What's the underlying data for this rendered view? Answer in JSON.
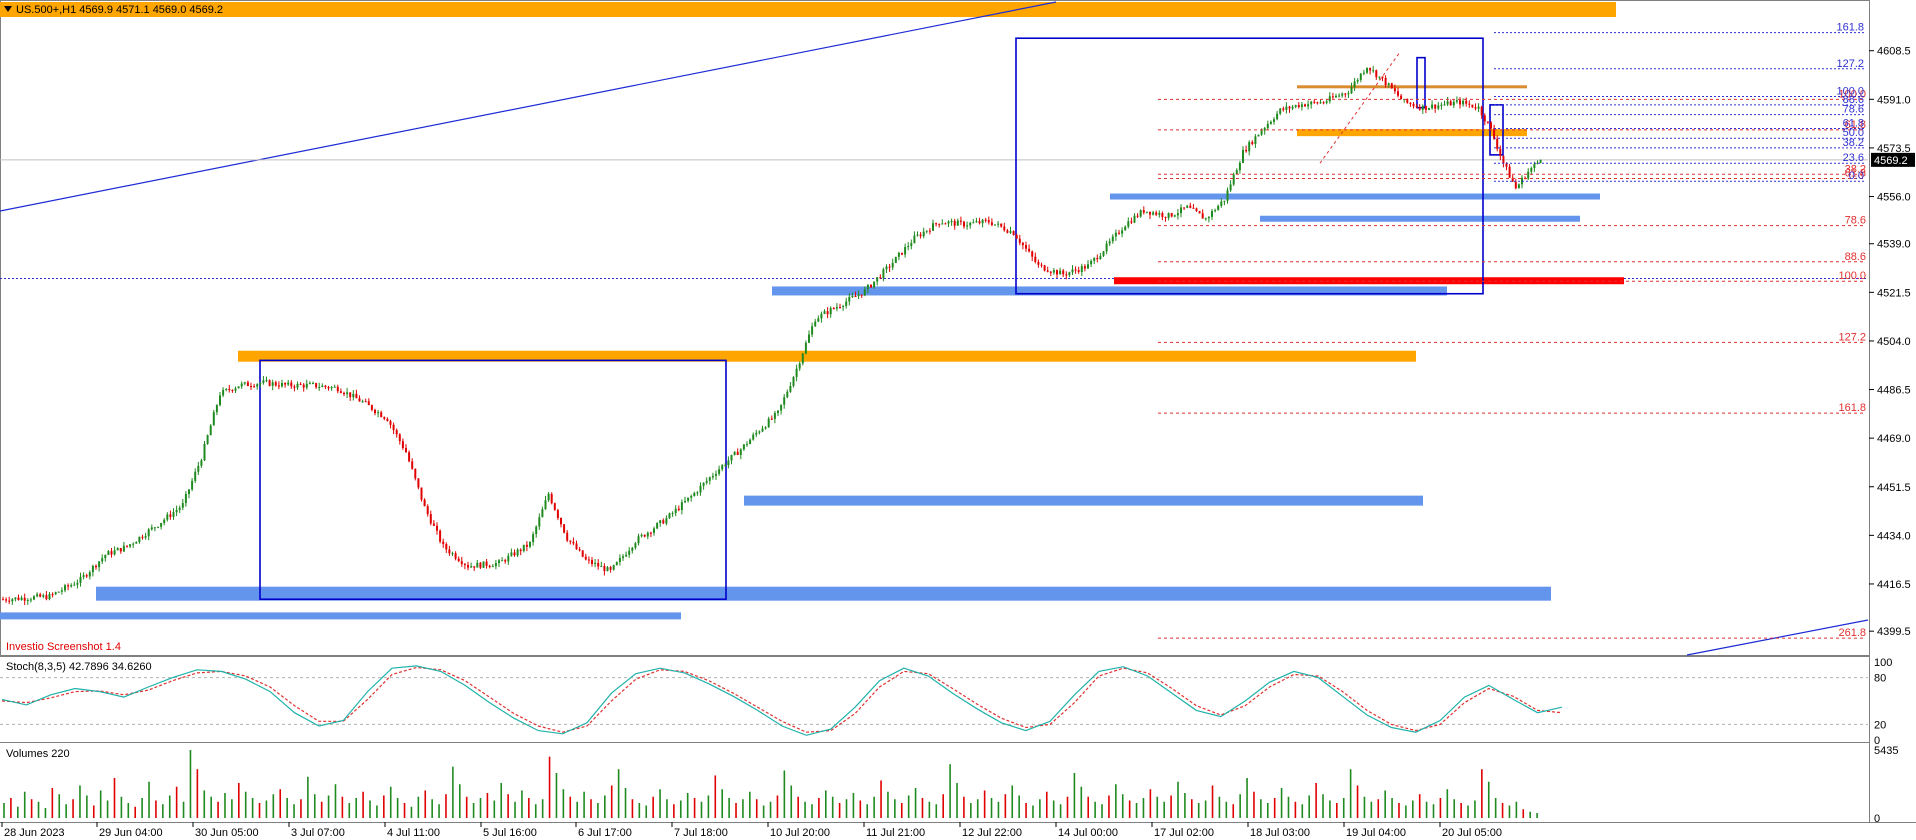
{
  "header": {
    "symbol_line": "US.500+,H1  4569.9 4571.1 4569.0 4569.2",
    "watermark": "Investio Screenshot 1.4",
    "menu_icon": "triangle-down-icon"
  },
  "colors": {
    "bull": "#1f8a1f",
    "bear": "#e00000",
    "orange": "#ffa500",
    "zone_blue": "#6495ed",
    "box_blue": "#0000cd",
    "fib_red": "#e03030",
    "fib_blue": "#3030d0",
    "red_zone": "#ff0000",
    "stoch_main": "#20b2aa",
    "stoch_signal": "#e03030"
  },
  "chart_data": {
    "type": "candlestick",
    "symbol": "US.500+",
    "timeframe": "H1",
    "ohlc_last": {
      "open": 4569.9,
      "high": 4571.1,
      "low": 4569.0,
      "close": 4569.2
    },
    "last_price_label": "4569.2",
    "y_ticks": [
      "4608.5",
      "4591.0",
      "4573.5",
      "4556.0",
      "4539.0",
      "4521.5",
      "4504.0",
      "4486.5",
      "4469.0",
      "4451.5",
      "4434.0",
      "4416.5",
      "4399.5"
    ],
    "y_range": [
      4392,
      4621
    ],
    "x_ticks": [
      "28 Jun 2023",
      "29 Jun 04:00",
      "30 Jun 05:00",
      "3 Jul 07:00",
      "4 Jul 11:00",
      "5 Jul 16:00",
      "6 Jul 17:00",
      "7 Jul 18:00",
      "10 Jul 20:00",
      "11 Jul 21:00",
      "12 Jul 22:00",
      "14 Jul 00:00",
      "17 Jul 02:00",
      "18 Jul 03:00",
      "19 Jul 04:00",
      "20 Jul 05:00"
    ],
    "price_path": [
      [
        0,
        4411
      ],
      [
        15,
        4412
      ],
      [
        25,
        4418
      ],
      [
        33,
        4427
      ],
      [
        40,
        4430
      ],
      [
        50,
        4438
      ],
      [
        58,
        4445
      ],
      [
        64,
        4462
      ],
      [
        70,
        4485
      ],
      [
        76,
        4488
      ],
      [
        84,
        4489
      ],
      [
        92,
        4488
      ],
      [
        100,
        4488
      ],
      [
        108,
        4487
      ],
      [
        116,
        4482
      ],
      [
        124,
        4476
      ],
      [
        130,
        4464
      ],
      [
        136,
        4444
      ],
      [
        142,
        4430
      ],
      [
        150,
        4423
      ],
      [
        160,
        4424
      ],
      [
        170,
        4431
      ],
      [
        176,
        4449
      ],
      [
        182,
        4433
      ],
      [
        188,
        4425
      ],
      [
        196,
        4421
      ],
      [
        204,
        4432
      ],
      [
        214,
        4440
      ],
      [
        222,
        4448
      ],
      [
        230,
        4457
      ],
      [
        238,
        4465
      ],
      [
        244,
        4472
      ],
      [
        250,
        4478
      ],
      [
        256,
        4494
      ],
      [
        262,
        4512
      ],
      [
        270,
        4517
      ],
      [
        278,
        4522
      ],
      [
        286,
        4531
      ],
      [
        294,
        4541
      ],
      [
        302,
        4547
      ],
      [
        310,
        4546
      ],
      [
        318,
        4547
      ],
      [
        326,
        4543
      ],
      [
        334,
        4531
      ],
      [
        342,
        4528
      ],
      [
        350,
        4531
      ],
      [
        356,
        4538
      ],
      [
        362,
        4546
      ],
      [
        368,
        4551
      ],
      [
        376,
        4549
      ],
      [
        382,
        4552
      ],
      [
        388,
        4548
      ],
      [
        394,
        4555
      ],
      [
        400,
        4572
      ],
      [
        406,
        4580
      ],
      [
        412,
        4587
      ],
      [
        418,
        4589
      ],
      [
        426,
        4590
      ],
      [
        434,
        4594
      ],
      [
        440,
        4603
      ],
      [
        446,
        4597
      ],
      [
        452,
        4590
      ],
      [
        458,
        4588
      ],
      [
        464,
        4589
      ],
      [
        470,
        4590
      ],
      [
        476,
        4588
      ],
      [
        480,
        4580
      ],
      [
        484,
        4568
      ],
      [
        488,
        4559
      ],
      [
        492,
        4565
      ],
      [
        496,
        4569.2
      ]
    ],
    "stochastic": {
      "label": "Stoch(8,3,5) 42.7896 34.6260",
      "levels": [
        "100",
        "80",
        "20",
        "0"
      ],
      "main": [
        52,
        45,
        58,
        66,
        62,
        55,
        68,
        80,
        90,
        88,
        78,
        62,
        35,
        18,
        25,
        62,
        92,
        95,
        88,
        70,
        48,
        28,
        12,
        8,
        22,
        60,
        85,
        92,
        86,
        72,
        56,
        38,
        18,
        6,
        14,
        42,
        76,
        92,
        82,
        60,
        40,
        22,
        12,
        24,
        58,
        88,
        94,
        82,
        60,
        38,
        30,
        50,
        74,
        88,
        80,
        56,
        32,
        16,
        10,
        25,
        55,
        70,
        52,
        35,
        42
      ],
      "signal": [
        50,
        48,
        54,
        62,
        63,
        58,
        64,
        76,
        86,
        88,
        82,
        68,
        44,
        24,
        24,
        52,
        84,
        93,
        90,
        76,
        55,
        34,
        18,
        10,
        18,
        50,
        78,
        90,
        88,
        76,
        60,
        42,
        24,
        10,
        12,
        34,
        68,
        88,
        85,
        66,
        46,
        28,
        16,
        20,
        48,
        82,
        92,
        86,
        66,
        44,
        32,
        44,
        68,
        84,
        82,
        62,
        38,
        20,
        12,
        20,
        48,
        66,
        56,
        38,
        35
      ]
    },
    "volumes": {
      "label": "Volumes 220",
      "axis": [
        "5435",
        "0"
      ],
      "max": 5435,
      "values": [
        1200,
        1600,
        900,
        2100,
        1500,
        1300,
        800,
        2400,
        1900,
        1100,
        1500,
        2600,
        1800,
        1000,
        2200,
        1400,
        3200,
        1700,
        1200,
        900,
        1600,
        2900,
        1400,
        1100,
        1800,
        2500,
        1300,
        5435,
        3900,
        2200,
        1700,
        1300,
        2000,
        1500,
        2800,
        2100,
        1600,
        1200,
        1400,
        1900,
        2300,
        1600,
        1100,
        1500,
        3300,
        1900,
        1300,
        1800,
        2700,
        1700,
        1200,
        1600,
        2100,
        1400,
        1000,
        1800,
        2500,
        1600,
        1200,
        900,
        1700,
        2200,
        1500,
        1100,
        1900,
        4100,
        2700,
        1700,
        1200,
        1600,
        2000,
        1400,
        2800,
        1900,
        1300,
        2200,
        1600,
        1100,
        1500,
        4900,
        3600,
        2300,
        1700,
        1300,
        2100,
        1500,
        1200,
        1800,
        2600,
        3900,
        2400,
        1500,
        1200,
        1000,
        1700,
        2300,
        1500,
        1100,
        1400,
        2000,
        1600,
        1300,
        1800,
        3400,
        2300,
        1600,
        1200,
        1500,
        2100,
        1500,
        1000,
        1300,
        1800,
        3800,
        2600,
        1700,
        1300,
        1100,
        1600,
        2200,
        1700,
        1200,
        1500,
        2000,
        1400,
        1100,
        1700,
        3000,
        2100,
        1500,
        1200,
        1800,
        2400,
        1600,
        1300,
        1100,
        1900,
        4300,
        2800,
        1700,
        1200,
        1500,
        2200,
        1600,
        1300,
        1900,
        2600,
        1800,
        1200,
        1000,
        1500,
        2100,
        1400,
        1100,
        1700,
        3600,
        2500,
        1700,
        1300,
        1100,
        1800,
        2700,
        1900,
        1400,
        1200,
        1600,
        2300,
        1700,
        1300,
        1800,
        2900,
        2000,
        1500,
        1200,
        1400,
        2600,
        1700,
        1300,
        1100,
        1900,
        3200,
        2100,
        1500,
        1200,
        1600,
        2400,
        1700,
        1300,
        1100,
        1800,
        2800,
        1900,
        1400,
        1200,
        1600,
        3900,
        2600,
        1700,
        1300,
        1500,
        2200,
        1600,
        1200,
        1000,
        1400,
        1900,
        1300,
        1100,
        1600,
        2300,
        1500,
        1200,
        1000,
        1400,
        3900,
        2900,
        1600,
        1200,
        1000,
        1300,
        700,
        500,
        400
      ]
    },
    "zones": {
      "orange": [
        4613,
        4595.5,
        4579,
        4498.5
      ],
      "red": [
        4525.5
      ],
      "blue": [
        4556,
        4548,
        4522,
        4446.5,
        4413,
        4405
      ]
    },
    "fib_red_levels": [
      "61.8",
      "78.6",
      "88.6",
      "100.0",
      "127.2",
      "161.8",
      "261.8"
    ],
    "fib_red_top_levels": [
      "100.0",
      "61.8",
      "38.2"
    ],
    "fib_blue_levels": [
      "161.8",
      "127.2",
      "100.0",
      "88.6",
      "78.6",
      "61.8",
      "50.0",
      "38.2",
      "23.6",
      "0.0"
    ]
  }
}
